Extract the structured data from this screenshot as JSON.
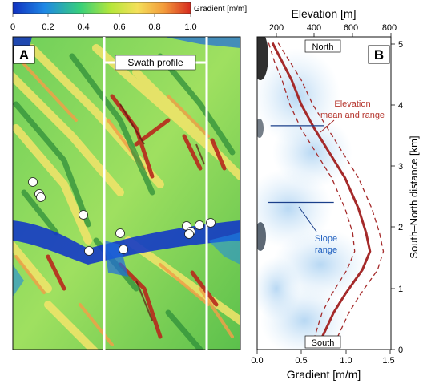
{
  "colorbar": {
    "label": "Gradient [m/m]",
    "ticks": [
      "0",
      "0.2",
      "0.4",
      "0.6",
      "0.8",
      "1.0"
    ],
    "stops": [
      "#1030c0",
      "#1e88e5",
      "#38d07a",
      "#b5e63a",
      "#f4e05a",
      "#f39b3c",
      "#d62a1e"
    ]
  },
  "panel_a": {
    "letter": "A",
    "swath_label": "Swath profile",
    "sample_points": 13
  },
  "panel_b": {
    "letter": "B",
    "top_axis_label": "Elevation [m]",
    "top_ticks": [
      "200",
      "400",
      "600",
      "800"
    ],
    "bottom_axis_label": "Gradient [m/m]",
    "bottom_ticks": [
      "0.0",
      "0.5",
      "1.0",
      "1.5"
    ],
    "right_axis_label": "South–North distance [km]",
    "right_ticks": [
      "0",
      "1",
      "2",
      "3",
      "4",
      "5"
    ],
    "north_label": "North",
    "south_label": "South",
    "elevation_annotation_line1": "Elevation",
    "elevation_annotation_line2": "mean and range",
    "slope_annotation_line1": "Slope",
    "slope_annotation_line2": "range",
    "colors": {
      "elevation": "#a52a2a",
      "slope_text": "#1f5fbf",
      "slope_line": "#1a3f8a"
    }
  },
  "chart_data": {
    "type": "line",
    "x_gradient_lim": [
      0,
      1.5
    ],
    "x_elevation_lim": [
      100,
      800
    ],
    "y_lim": [
      0,
      5.1
    ],
    "series": [
      {
        "name": "Elevation mean",
        "x": [
          180,
          230,
          280,
          330,
          400,
          480,
          560,
          630,
          670,
          690,
          650,
          560,
          500,
          470,
          440,
          420
        ],
        "y": [
          5.0,
          4.7,
          4.4,
          4.0,
          3.6,
          3.2,
          2.8,
          2.3,
          1.9,
          1.6,
          1.3,
          0.9,
          0.6,
          0.4,
          0.2,
          0.1
        ]
      },
      {
        "name": "Elevation min",
        "x": [
          160,
          190,
          230,
          270,
          330,
          410,
          490,
          560,
          600,
          610,
          570,
          490,
          440,
          420,
          400,
          390
        ],
        "y": [
          5.0,
          4.7,
          4.4,
          4.0,
          3.6,
          3.2,
          2.8,
          2.3,
          1.9,
          1.6,
          1.3,
          0.9,
          0.6,
          0.4,
          0.2,
          0.1
        ]
      },
      {
        "name": "Elevation max",
        "x": [
          210,
          270,
          330,
          390,
          470,
          550,
          630,
          700,
          740,
          760,
          730,
          640,
          580,
          550,
          520,
          500
        ],
        "y": [
          5.0,
          4.7,
          4.4,
          4.0,
          3.6,
          3.2,
          2.8,
          2.3,
          1.9,
          1.6,
          1.3,
          0.9,
          0.6,
          0.4,
          0.2,
          0.1
        ]
      }
    ],
    "slope_range_bars": [
      {
        "y": 3.65,
        "x_gradient": [
          0.15,
          0.75
        ]
      },
      {
        "y": 2.4,
        "x_gradient": [
          0.12,
          0.86
        ]
      }
    ]
  }
}
